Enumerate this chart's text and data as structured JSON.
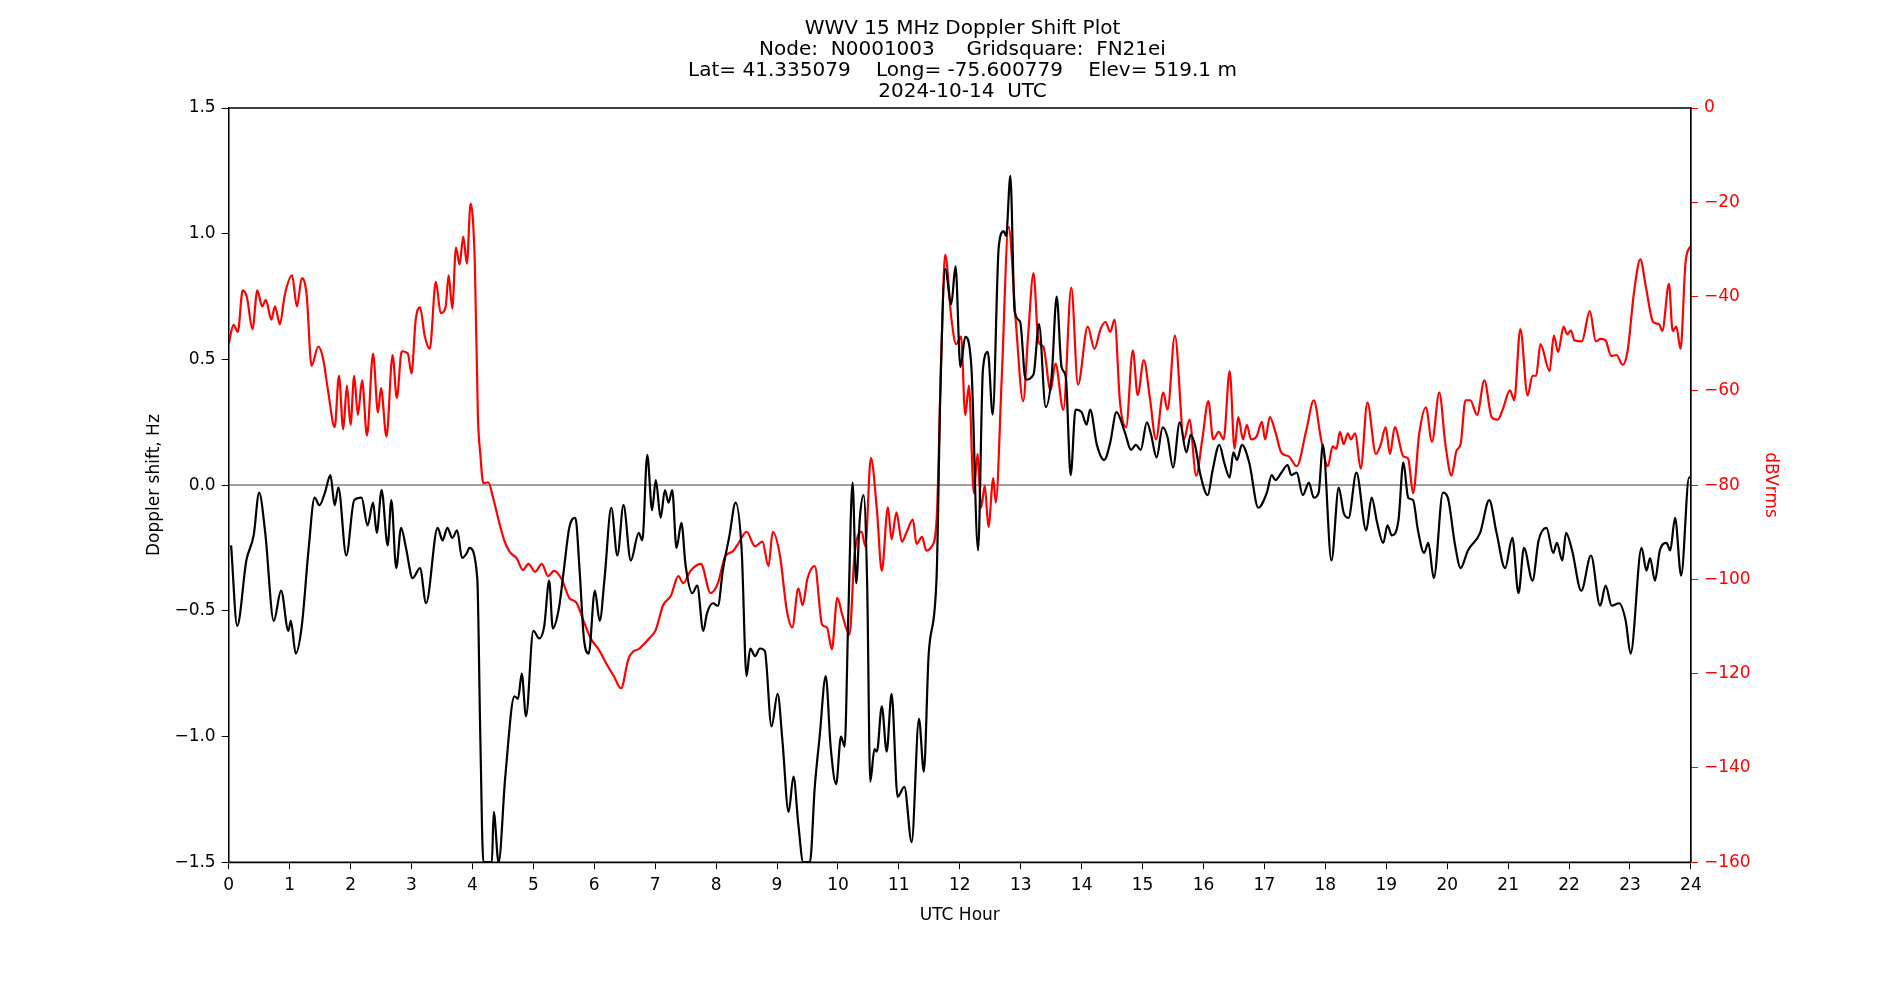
{
  "chart_data": {
    "type": "line",
    "title": "WWV 15 MHz Doppler Shift Plot",
    "subtitle": "Node:  N0001003     Gridsquare:  FN21ei\nLat= 41.335079    Long= -75.600779    Elev= 519.1 m\n2024-10-14  UTC",
    "xlabel": "UTC Hour",
    "ylabel": "Doppler shift, Hz",
    "y2label": "dBVrms",
    "xlim": [
      0,
      24
    ],
    "xticks": [
      0,
      1,
      2,
      3,
      4,
      5,
      6,
      7,
      8,
      9,
      10,
      11,
      12,
      13,
      14,
      15,
      16,
      17,
      18,
      19,
      20,
      21,
      22,
      23,
      24
    ],
    "ylim": [
      -1.5,
      1.5
    ],
    "yticks": [
      {
        "value": -1.5,
        "label": "−1.5"
      },
      {
        "value": -1.0,
        "label": "−1.0"
      },
      {
        "value": -0.5,
        "label": "−0.5"
      },
      {
        "value": 0,
        "label": "0.0"
      },
      {
        "value": 0.5,
        "label": "0.5"
      },
      {
        "value": 1.0,
        "label": "1.0"
      },
      {
        "value": 1.5,
        "label": "1.5"
      }
    ],
    "y2lim": [
      -160,
      0
    ],
    "y2ticks": [
      {
        "value": -160,
        "label": "−160"
      },
      {
        "value": -140,
        "label": "−140"
      },
      {
        "value": -120,
        "label": "−120"
      },
      {
        "value": -100,
        "label": "−100"
      },
      {
        "value": -80,
        "label": "−80"
      },
      {
        "value": -60,
        "label": "−60"
      },
      {
        "value": -40,
        "label": "−40"
      },
      {
        "value": -20,
        "label": "−20"
      },
      {
        "value": 0,
        "label": "0"
      }
    ],
    "grid": false,
    "legend": false,
    "marker": "none",
    "line_style": "solid",
    "ref_lines": [
      {
        "axis": "y",
        "value": 0,
        "color": "#808080"
      }
    ],
    "series": [
      {
        "color": "#000000",
        "x": [
          0.04,
          0.14,
          0.29,
          0.41,
          0.5,
          0.6,
          0.74,
          0.86,
          0.98,
          1.02,
          1.1,
          1.2,
          1.31,
          1.41,
          1.49,
          1.58,
          1.67,
          1.74,
          1.8,
          1.93,
          2.06,
          2.18,
          2.28,
          2.37,
          2.43,
          2.51,
          2.61,
          2.67,
          2.75,
          2.83,
          2.91,
          3.02,
          3.14,
          3.24,
          3.43,
          3.51,
          3.59,
          3.67,
          3.75,
          3.83,
          3.91,
          3.95,
          4.08,
          4.13,
          4.18,
          4.32,
          4.35,
          4.43,
          4.54,
          4.69,
          4.75,
          4.81,
          4.88,
          5.0,
          5.1,
          5.18,
          5.26,
          5.32,
          5.42,
          5.5,
          5.59,
          5.69,
          5.76,
          5.83,
          5.91,
          6.01,
          6.09,
          6.17,
          6.28,
          6.38,
          6.48,
          6.6,
          6.73,
          6.79,
          6.87,
          6.95,
          7.01,
          7.09,
          7.16,
          7.22,
          7.28,
          7.35,
          7.43,
          7.5,
          7.61,
          7.69,
          7.79,
          7.85,
          7.95,
          8.03,
          8.11,
          8.22,
          8.32,
          8.42,
          8.5,
          8.56,
          8.64,
          8.72,
          8.8,
          8.91,
          9.01,
          9.09,
          9.19,
          9.27,
          9.35,
          9.43,
          9.54,
          9.62,
          9.7,
          9.8,
          9.88,
          9.97,
          10.05,
          10.11,
          10.17,
          10.24,
          10.3,
          10.36,
          10.42,
          10.48,
          10.53,
          10.6,
          10.64,
          10.72,
          10.8,
          10.88,
          10.98,
          11.09,
          11.21,
          11.33,
          11.41,
          11.49,
          11.62,
          11.68,
          11.76,
          11.86,
          11.93,
          12.01,
          12.09,
          12.19,
          12.3,
          12.38,
          12.46,
          12.54,
          12.64,
          12.72,
          12.76,
          12.83,
          12.9,
          12.99,
          13.08,
          13.21,
          13.3,
          13.41,
          13.51,
          13.59,
          13.67,
          13.74,
          13.82,
          13.9,
          14.0,
          14.08,
          14.14,
          14.25,
          14.37,
          14.47,
          14.57,
          14.71,
          14.81,
          14.89,
          14.97,
          15.07,
          15.14,
          15.23,
          15.33,
          15.41,
          15.5,
          15.61,
          15.72,
          15.79,
          15.86,
          15.95,
          16.07,
          16.15,
          16.26,
          16.34,
          16.43,
          16.49,
          16.55,
          16.63,
          16.75,
          16.9,
          17.04,
          17.12,
          17.18,
          17.28,
          17.38,
          17.44,
          17.53,
          17.63,
          17.73,
          17.81,
          17.89,
          17.96,
          18.1,
          18.22,
          18.3,
          18.38,
          18.51,
          18.67,
          18.76,
          18.85,
          18.95,
          19.02,
          19.09,
          19.2,
          19.28,
          19.36,
          19.44,
          19.52,
          19.62,
          19.69,
          19.78,
          19.93,
          20.01,
          20.13,
          20.22,
          20.34,
          20.54,
          20.69,
          20.81,
          20.95,
          21.07,
          21.17,
          21.26,
          21.4,
          21.5,
          21.63,
          21.74,
          21.8,
          21.89,
          21.95,
          22.05,
          22.2,
          22.36,
          22.51,
          22.6,
          22.7,
          22.82,
          22.93,
          23.01,
          23.19,
          23.27,
          23.33,
          23.41,
          23.49,
          23.6,
          23.66,
          23.74,
          23.84,
          23.97,
          24
        ],
        "values": [
          -0.24,
          -0.56,
          -0.3,
          -0.2,
          -0.03,
          -0.19,
          -0.54,
          -0.42,
          -0.58,
          -0.54,
          -0.67,
          -0.56,
          -0.26,
          -0.05,
          -0.08,
          -0.03,
          0.04,
          -0.08,
          -0.01,
          -0.28,
          -0.06,
          -0.05,
          -0.16,
          -0.07,
          -0.19,
          -0.02,
          -0.24,
          -0.06,
          -0.33,
          -0.17,
          -0.25,
          -0.37,
          -0.33,
          -0.47,
          -0.17,
          -0.22,
          -0.17,
          -0.21,
          -0.18,
          -0.29,
          -0.27,
          -0.25,
          -0.37,
          -1.0,
          -1.5,
          -1.5,
          -1.3,
          -1.5,
          -1.16,
          -0.84,
          -0.85,
          -0.75,
          -0.92,
          -0.58,
          -0.61,
          -0.56,
          -0.38,
          -0.57,
          -0.49,
          -0.34,
          -0.17,
          -0.13,
          -0.34,
          -0.61,
          -0.67,
          -0.42,
          -0.54,
          -0.37,
          -0.09,
          -0.28,
          -0.08,
          -0.3,
          -0.19,
          -0.22,
          0.12,
          -0.1,
          0.02,
          -0.13,
          -0.02,
          -0.07,
          -0.02,
          -0.25,
          -0.15,
          -0.32,
          -0.43,
          -0.4,
          -0.58,
          -0.51,
          -0.47,
          -0.48,
          -0.34,
          -0.2,
          -0.07,
          -0.26,
          -0.76,
          -0.65,
          -0.68,
          -0.65,
          -0.66,
          -0.96,
          -0.83,
          -1.02,
          -1.3,
          -1.16,
          -1.35,
          -1.5,
          -1.5,
          -1.2,
          -1.0,
          -0.76,
          -1.04,
          -1.19,
          -1.0,
          -1.04,
          -0.52,
          0.01,
          -0.39,
          -0.13,
          -0.04,
          -0.4,
          -1.18,
          -1.05,
          -1.06,
          -0.88,
          -1.06,
          -0.83,
          -1.24,
          -1.2,
          -1.42,
          -0.93,
          -1.14,
          -0.67,
          -0.36,
          0.36,
          0.86,
          0.72,
          0.87,
          0.47,
          0.59,
          0.47,
          -0.26,
          0.46,
          0.53,
          0.28,
          0.95,
          1.01,
          0.99,
          1.23,
          0.69,
          0.65,
          0.42,
          0.44,
          0.64,
          0.31,
          0.44,
          0.75,
          0.47,
          0.43,
          0.04,
          0.3,
          0.29,
          0.24,
          0.3,
          0.16,
          0.1,
          0.17,
          0.29,
          0.21,
          0.14,
          0.16,
          0.14,
          0.25,
          0.2,
          0.11,
          0.23,
          0.19,
          0.07,
          0.25,
          0.13,
          0.2,
          0.16,
          0.04,
          -0.04,
          0.06,
          0.16,
          0.09,
          0.03,
          0.13,
          0.1,
          0.16,
          0.09,
          -0.09,
          -0.03,
          0.04,
          0.02,
          0.05,
          0.08,
          0.04,
          0.05,
          -0.04,
          0.01,
          -0.05,
          -0.03,
          0.16,
          -0.3,
          -0.01,
          -0.11,
          -0.13,
          0.05,
          -0.18,
          -0.05,
          -0.15,
          -0.23,
          -0.16,
          -0.2,
          -0.14,
          0.09,
          -0.05,
          -0.06,
          -0.18,
          -0.27,
          -0.23,
          -0.37,
          -0.03,
          -0.05,
          -0.24,
          -0.33,
          -0.26,
          -0.19,
          -0.06,
          -0.19,
          -0.33,
          -0.21,
          -0.43,
          -0.25,
          -0.38,
          -0.22,
          -0.17,
          -0.27,
          -0.23,
          -0.3,
          -0.19,
          -0.26,
          -0.42,
          -0.28,
          -0.48,
          -0.4,
          -0.48,
          -0.47,
          -0.54,
          -0.67,
          -0.25,
          -0.34,
          -0.29,
          -0.38,
          -0.26,
          -0.23,
          -0.26,
          -0.13,
          -0.36,
          0.03,
          0.03
        ]
      },
      {
        "color": "#ff0000",
        "axis": "y2",
        "x": [
          0,
          0.08,
          0.15,
          0.23,
          0.3,
          0.39,
          0.47,
          0.55,
          0.61,
          0.7,
          0.76,
          0.84,
          0.92,
          1.04,
          1.12,
          1.2,
          1.28,
          1.36,
          1.47,
          1.55,
          1.63,
          1.74,
          1.81,
          1.88,
          1.94,
          2.0,
          2.06,
          2.12,
          2.19,
          2.27,
          2.37,
          2.45,
          2.5,
          2.59,
          2.69,
          2.76,
          2.84,
          2.94,
          3.0,
          3.07,
          3.14,
          3.22,
          3.3,
          3.4,
          3.48,
          3.56,
          3.61,
          3.67,
          3.73,
          3.79,
          3.85,
          3.91,
          3.97,
          4.04,
          4.09,
          4.13,
          4.18,
          4.26,
          4.34,
          4.43,
          4.53,
          4.61,
          4.73,
          4.83,
          4.92,
          5.03,
          5.14,
          5.24,
          5.34,
          5.46,
          5.59,
          5.71,
          5.83,
          5.95,
          6.07,
          6.2,
          6.32,
          6.44,
          6.56,
          6.64,
          6.73,
          6.81,
          6.89,
          7.01,
          7.13,
          7.26,
          7.38,
          7.46,
          7.58,
          7.75,
          7.91,
          8.03,
          8.15,
          8.27,
          8.36,
          8.5,
          8.64,
          8.76,
          8.86,
          8.93,
          9.05,
          9.16,
          9.25,
          9.35,
          9.42,
          9.5,
          9.62,
          9.74,
          9.82,
          9.9,
          9.99,
          10.07,
          10.19,
          10.27,
          10.39,
          10.45,
          10.54,
          10.64,
          10.72,
          10.82,
          10.88,
          10.96,
          11.05,
          11.13,
          11.23,
          11.29,
          11.38,
          11.45,
          11.54,
          11.62,
          11.7,
          11.76,
          11.86,
          11.94,
          12.02,
          12.09,
          12.15,
          12.23,
          12.29,
          12.35,
          12.41,
          12.47,
          12.55,
          12.59,
          12.69,
          12.8,
          12.92,
          13.04,
          13.12,
          13.21,
          13.29,
          13.37,
          13.49,
          13.57,
          13.7,
          13.83,
          13.94,
          14.1,
          14.21,
          14.31,
          14.39,
          14.47,
          14.54,
          14.63,
          14.73,
          14.84,
          14.92,
          15.02,
          15.12,
          15.22,
          15.34,
          15.41,
          15.53,
          15.68,
          15.77,
          15.88,
          15.98,
          16.08,
          16.16,
          16.25,
          16.33,
          16.43,
          16.51,
          16.57,
          16.65,
          16.71,
          16.78,
          16.87,
          16.96,
          17.01,
          17.09,
          17.18,
          17.28,
          17.4,
          17.53,
          17.69,
          17.81,
          17.93,
          18.04,
          18.12,
          18.18,
          18.24,
          18.3,
          18.37,
          18.42,
          18.49,
          18.58,
          18.69,
          18.83,
          18.91,
          18.99,
          19.06,
          19.14,
          19.28,
          19.36,
          19.44,
          19.54,
          19.65,
          19.75,
          19.87,
          19.97,
          20.07,
          20.15,
          20.22,
          20.3,
          20.38,
          20.49,
          20.61,
          20.73,
          20.83,
          20.91,
          21.03,
          21.1,
          21.2,
          21.32,
          21.4,
          21.46,
          21.53,
          21.68,
          21.75,
          21.82,
          21.91,
          21.97,
          22.03,
          22.09,
          22.21,
          22.34,
          22.44,
          22.52,
          22.6,
          22.69,
          22.78,
          22.88,
          22.96,
          23.07,
          23.17,
          23.26,
          23.38,
          23.48,
          23.53,
          23.64,
          23.7,
          23.76,
          23.83,
          23.91,
          23.98,
          24
        ],
        "values": [
          -50,
          -46,
          -47.5,
          -38.7,
          -40.2,
          -46.9,
          -38.7,
          -42.1,
          -40.7,
          -44.9,
          -42.1,
          -45.9,
          -39.7,
          -35.5,
          -42.1,
          -36.1,
          -39.7,
          -54.7,
          -50.6,
          -53.2,
          -59.9,
          -67.7,
          -56.8,
          -68.2,
          -58.9,
          -67.2,
          -56.8,
          -65.1,
          -57.8,
          -69.5,
          -52.1,
          -64.6,
          -59.4,
          -69.7,
          -52.4,
          -61.5,
          -51.6,
          -52.1,
          -56.3,
          -44.9,
          -42.3,
          -48.5,
          -51.1,
          -36.9,
          -43.5,
          -42.3,
          -35.5,
          -42.5,
          -29.6,
          -33.2,
          -27.3,
          -33,
          -20.3,
          -33,
          -65.1,
          -73.4,
          -79.6,
          -79.4,
          -82.7,
          -87.4,
          -92,
          -94.1,
          -95.6,
          -98,
          -96.7,
          -98.4,
          -96.7,
          -99.3,
          -98.2,
          -99.8,
          -103.9,
          -105,
          -109,
          -112.7,
          -114.8,
          -117.9,
          -120.5,
          -123.1,
          -116.9,
          -115.3,
          -114.8,
          -113.8,
          -112.7,
          -110.7,
          -105.5,
          -103.4,
          -99.3,
          -100.8,
          -98.2,
          -96.7,
          -102.9,
          -100.8,
          -95.1,
          -94.1,
          -92.5,
          -89.9,
          -93,
          -92,
          -97.2,
          -89.9,
          -95.1,
          -106.5,
          -110.2,
          -101.9,
          -105.5,
          -99.8,
          -97.2,
          -109.6,
          -110.2,
          -114.8,
          -103.9,
          -107.5,
          -111.7,
          -95.1,
          -89.9,
          -93,
          -74.2,
          -85.3,
          -98.2,
          -84.7,
          -91.5,
          -85.8,
          -92,
          -89.9,
          -87.3,
          -92.5,
          -91,
          -93.9,
          -93,
          -87.3,
          -50.6,
          -31.1,
          -44.4,
          -50.1,
          -48.5,
          -65.1,
          -58.9,
          -81.7,
          -73.4,
          -84.8,
          -80.1,
          -88.9,
          -78.5,
          -83.7,
          -56.8,
          -25.2,
          -45.4,
          -62.2,
          -48.5,
          -35,
          -49.5,
          -50.6,
          -59.9,
          -54.2,
          -64,
          -38.1,
          -58.7,
          -46.4,
          -51.1,
          -46.9,
          -45.4,
          -47.5,
          -44.9,
          -62.5,
          -67.7,
          -51.4,
          -60.9,
          -53.5,
          -61.5,
          -70.3,
          -60.4,
          -64,
          -48.3,
          -70.3,
          -66.1,
          -78,
          -70.3,
          -62.2,
          -70.3,
          -68.7,
          -70.3,
          -55.8,
          -72.3,
          -65.6,
          -70.3,
          -67.2,
          -70.3,
          -69.7,
          -66.6,
          -70.3,
          -65.6,
          -68.7,
          -73.2,
          -73.9,
          -76,
          -68.2,
          -62,
          -70.3,
          -76,
          -71.8,
          -72.3,
          -68.7,
          -71.3,
          -69,
          -70.3,
          -69,
          -76.5,
          -62.5,
          -73.4,
          -71.3,
          -67.7,
          -73.4,
          -67.7,
          -73.9,
          -74.4,
          -81.7,
          -69.2,
          -63.5,
          -70.8,
          -60.4,
          -71.3,
          -78,
          -72.8,
          -71.3,
          -62,
          -62,
          -65.1,
          -57.8,
          -65.6,
          -66.1,
          -64,
          -59.9,
          -62,
          -46.9,
          -61,
          -56.8,
          -56.8,
          -50.1,
          -55.8,
          -48.3,
          -51.8,
          -46.4,
          -48,
          -47.2,
          -49.3,
          -49.5,
          -43.1,
          -49.5,
          -49,
          -49.3,
          -52.6,
          -52.4,
          -54.5,
          -51.6,
          -38.7,
          -32.1,
          -37.9,
          -45.4,
          -45.9,
          -47.3,
          -37.3,
          -47.3,
          -46.4,
          -51.1,
          -33,
          -29.6,
          -29.4
        ]
      }
    ]
  }
}
